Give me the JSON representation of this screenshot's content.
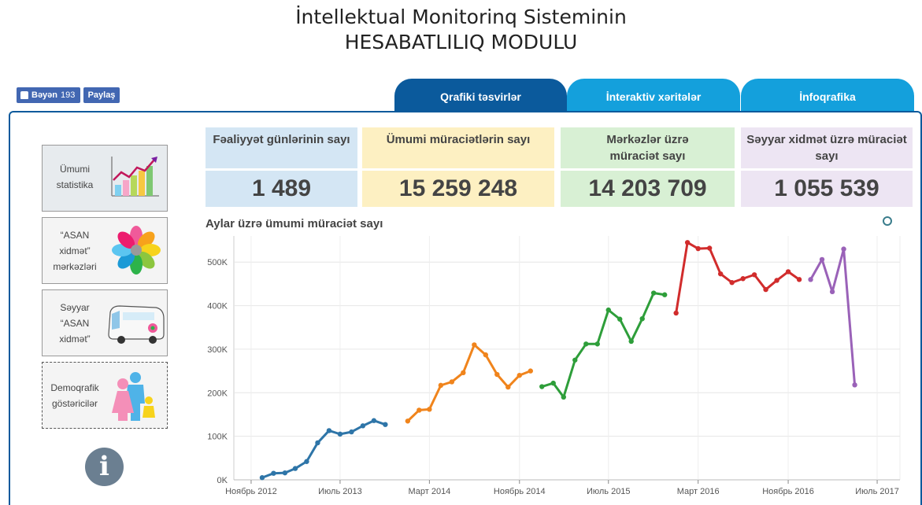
{
  "header": {
    "title_line1": "İntellektual Monitorinq Sisteminin",
    "title_line2": "HESABATLILIQ MODULU"
  },
  "social": {
    "like_label": "Bəyən",
    "like_count": "193",
    "share_label": "Paylaş"
  },
  "tabs": [
    {
      "label": "Qrafiki təsvirlər",
      "active": true
    },
    {
      "label": "İnteraktiv xəritələr",
      "active": false
    },
    {
      "label": "İnfoqrafika",
      "active": false
    }
  ],
  "sidebar": {
    "items": [
      {
        "label": "Ümumi statistika",
        "icon": "growth-chart-icon"
      },
      {
        "label": "“ASAN xidmət” mərkəzləri",
        "icon": "asan-flower-logo-icon"
      },
      {
        "label": "Səyyar “ASAN xidmət”",
        "icon": "mobile-bus-icon"
      },
      {
        "label": "Demoqrafik göstəricilər",
        "icon": "family-icon"
      }
    ],
    "info_icon": "info-icon"
  },
  "stats": [
    {
      "label": "Fəaliyyət günlərinin sayı",
      "value": "1 489",
      "color": "#d4e6f4"
    },
    {
      "label": "Ümumi müraciətlərin sayı",
      "value": "15 259 248",
      "color": "#fdf0c2"
    },
    {
      "label": "Mərkəzlər üzrə müraciət sayı",
      "value": "14 203 709",
      "color": "#d8f0d4"
    },
    {
      "label": "Səyyar xidmət üzrə müraciət sayı",
      "value": "1 055 539",
      "color": "#ede5f3"
    }
  ],
  "chart_title": "Aylar üzrə ümumi müraciət sayı",
  "chart_data": {
    "type": "line",
    "title": "Aylar üzrə ümumi müraciət sayı",
    "xlabel": "",
    "ylabel": "",
    "ylim": [
      0,
      560000
    ],
    "yticks": [
      0,
      100000,
      200000,
      300000,
      400000,
      500000
    ],
    "ytick_labels": [
      "0K",
      "100K",
      "200K",
      "300K",
      "400K",
      "500K"
    ],
    "xticks": [
      {
        "label": "Ноябрь 2012",
        "date": "2012-11"
      },
      {
        "label": "Июль 2013",
        "date": "2013-07"
      },
      {
        "label": "Март 2014",
        "date": "2014-03"
      },
      {
        "label": "Ноябрь 2014",
        "date": "2014-11"
      },
      {
        "label": "Июль 2015",
        "date": "2015-07"
      },
      {
        "label": "Март 2016",
        "date": "2016-03"
      },
      {
        "label": "Ноябрь 2016",
        "date": "2016-11"
      },
      {
        "label": "Июль 2017",
        "date": "2017-07"
      }
    ],
    "grid": true,
    "series": [
      {
        "color": "#2e75a8",
        "points": [
          [
            "2012-12",
            5000
          ],
          [
            "2013-01",
            15000
          ],
          [
            "2013-02",
            16000
          ],
          [
            "2013-03",
            26000
          ],
          [
            "2013-04",
            42000
          ],
          [
            "2013-05",
            85000
          ],
          [
            "2013-06",
            113000
          ],
          [
            "2013-07",
            105000
          ],
          [
            "2013-08",
            110000
          ],
          [
            "2013-09",
            124000
          ],
          [
            "2013-10",
            136000
          ],
          [
            "2013-11",
            127000
          ]
        ]
      },
      {
        "color": "#f0841c",
        "points": [
          [
            "2014-01",
            135000
          ],
          [
            "2014-02",
            160000
          ],
          [
            "2014-03",
            162000
          ],
          [
            "2014-04",
            217000
          ],
          [
            "2014-05",
            225000
          ],
          [
            "2014-06",
            246000
          ],
          [
            "2014-07",
            310000
          ],
          [
            "2014-08",
            287000
          ],
          [
            "2014-09",
            242000
          ],
          [
            "2014-10",
            213000
          ],
          [
            "2014-11",
            240000
          ],
          [
            "2014-12",
            250000
          ]
        ]
      },
      {
        "color": "#2e9e3a",
        "points": [
          [
            "2015-01",
            214000
          ],
          [
            "2015-02",
            222000
          ],
          [
            "2015-03",
            190000
          ],
          [
            "2015-04",
            275000
          ],
          [
            "2015-05",
            312000
          ],
          [
            "2015-06",
            312000
          ],
          [
            "2015-07",
            390000
          ],
          [
            "2015-08",
            369000
          ],
          [
            "2015-09",
            318000
          ],
          [
            "2015-10",
            370000
          ],
          [
            "2015-11",
            429000
          ],
          [
            "2015-12",
            425000
          ]
        ]
      },
      {
        "color": "#d12c2c",
        "points": [
          [
            "2016-01",
            383000
          ],
          [
            "2016-02",
            545000
          ],
          [
            "2016-03",
            531000
          ],
          [
            "2016-04",
            532000
          ],
          [
            "2016-05",
            473000
          ],
          [
            "2016-06",
            453000
          ],
          [
            "2016-07",
            462000
          ],
          [
            "2016-08",
            471000
          ],
          [
            "2016-09",
            437000
          ],
          [
            "2016-10",
            458000
          ],
          [
            "2016-11",
            478000
          ],
          [
            "2016-12",
            460000
          ]
        ]
      },
      {
        "color": "#9a62b8",
        "points": [
          [
            "2017-01",
            460000
          ],
          [
            "2017-02",
            506000
          ],
          [
            "2017-03",
            432000
          ],
          [
            "2017-04",
            530000
          ],
          [
            "2017-05",
            218000
          ]
        ]
      }
    ]
  }
}
